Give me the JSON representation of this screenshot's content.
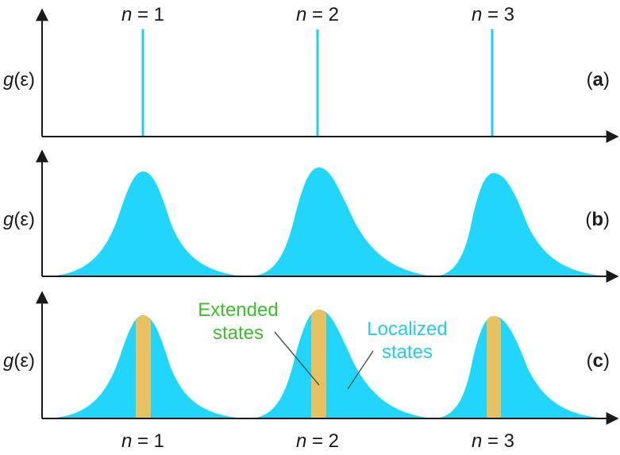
{
  "colors": {
    "axis": "#1a1a1a",
    "peak": "#22d6fb",
    "band": "#e8c160",
    "extended_text": "#3cbf2a",
    "localized_text": "#22ccee"
  },
  "top_labels": {
    "n1": {
      "italic": "n",
      "rest": " = 1"
    },
    "n2": {
      "italic": "n",
      "rest": " = 2"
    },
    "n3": {
      "italic": "n",
      "rest": " = 3"
    }
  },
  "bottom_labels": {
    "n1": {
      "italic": "n",
      "rest": " = 1"
    },
    "n2": {
      "italic": "n",
      "rest": " = 2"
    },
    "n3": {
      "italic": "n",
      "rest": " = 3"
    }
  },
  "panels": {
    "a": {
      "ylabel_italic": "g",
      "ylabel_rest": "(ε)",
      "tag_open": "(",
      "tag_letter": "a",
      "tag_close": ")"
    },
    "b": {
      "ylabel_italic": "g",
      "ylabel_rest": "(ε)",
      "tag_open": "(",
      "tag_letter": "b",
      "tag_close": ")"
    },
    "c": {
      "ylabel_italic": "g",
      "ylabel_rest": "(ε)",
      "tag_open": "(",
      "tag_letter": "c",
      "tag_close": ")"
    }
  },
  "annotations": {
    "extended_line1": "Extended",
    "extended_line2": "states",
    "localized_line1": "Localized",
    "localized_line2": "states"
  }
}
